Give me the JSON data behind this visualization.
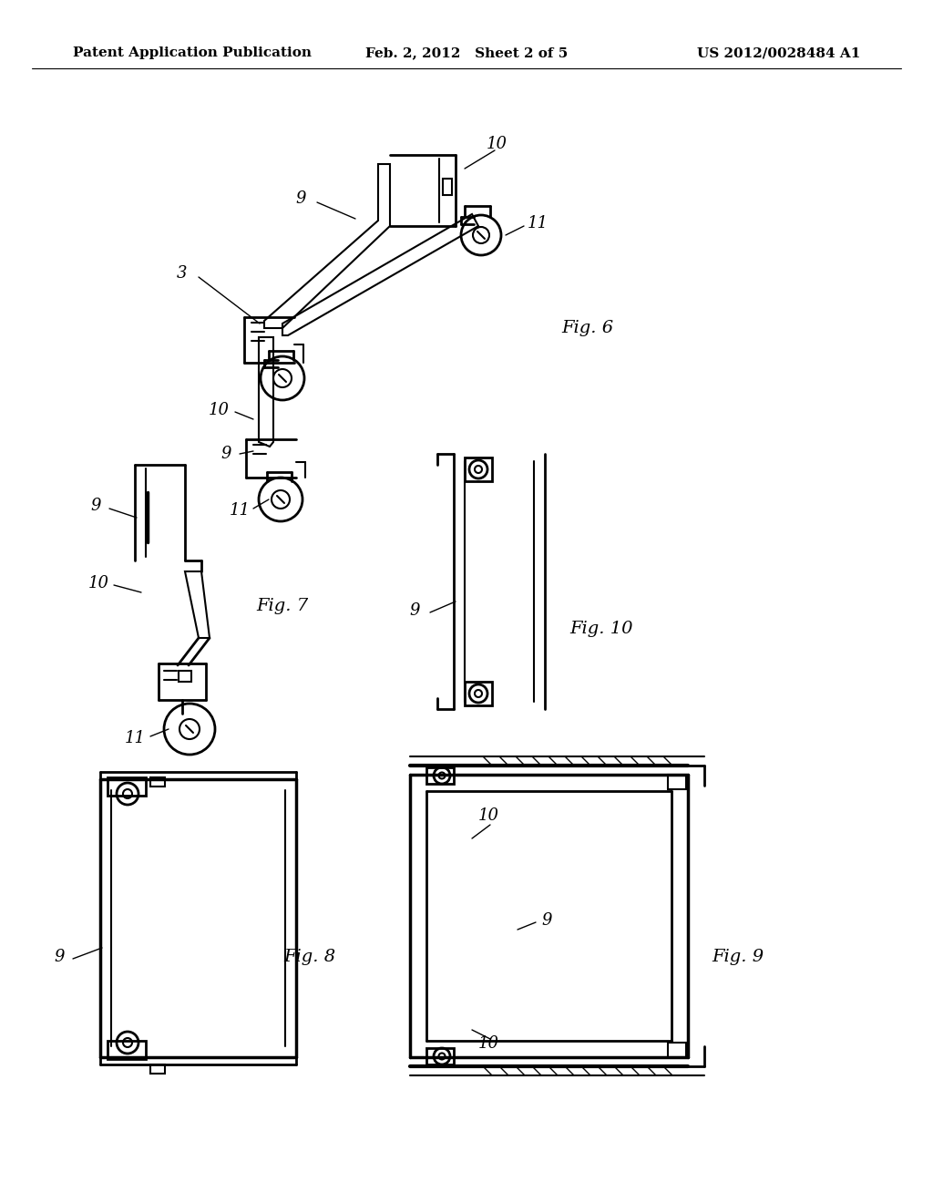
{
  "background_color": "#ffffff",
  "header_left": "Patent Application Publication",
  "header_center": "Feb. 2, 2012   Sheet 2 of 5",
  "header_right": "US 2012/0028484 A1",
  "header_fontsize": 11,
  "fig6_label": "Fig. 6",
  "fig7_label": "Fig. 7",
  "fig8_label": "Fig. 8",
  "fig9_label": "Fig. 9",
  "fig10_label": "Fig. 10",
  "line_color": "#000000"
}
